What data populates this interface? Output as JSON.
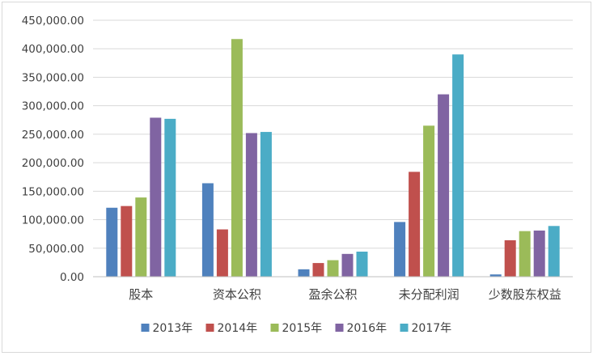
{
  "chart_data": {
    "type": "bar",
    "title": "",
    "xlabel": "",
    "ylabel": "",
    "categories": [
      "股本",
      "资本公积",
      "盈余公积",
      "未分配利润",
      "少数股东权益"
    ],
    "series": [
      {
        "name": "2013年",
        "color": "#4f81bd",
        "values": [
          121000,
          164000,
          13000,
          96000,
          4000
        ]
      },
      {
        "name": "2014年",
        "color": "#c0504d",
        "values": [
          124000,
          83000,
          24000,
          184000,
          64000
        ]
      },
      {
        "name": "2015年",
        "color": "#9bbb59",
        "values": [
          139000,
          417000,
          29000,
          265000,
          80000
        ]
      },
      {
        "name": "2016年",
        "color": "#8064a2",
        "values": [
          279000,
          252000,
          40000,
          320000,
          81000
        ]
      },
      {
        "name": "2017年",
        "color": "#4bacc6",
        "values": [
          277000,
          254000,
          44000,
          390000,
          89000
        ]
      }
    ],
    "ylim": [
      0,
      450000
    ],
    "ytick_step": 50000,
    "ytick_labels": [
      "0.00",
      "50,000.00",
      "100,000.00",
      "150,000.00",
      "200,000.00",
      "250,000.00",
      "300,000.00",
      "350,000.00",
      "400,000.00",
      "450,000.00"
    ],
    "grid": true,
    "legend_position": "bottom"
  }
}
